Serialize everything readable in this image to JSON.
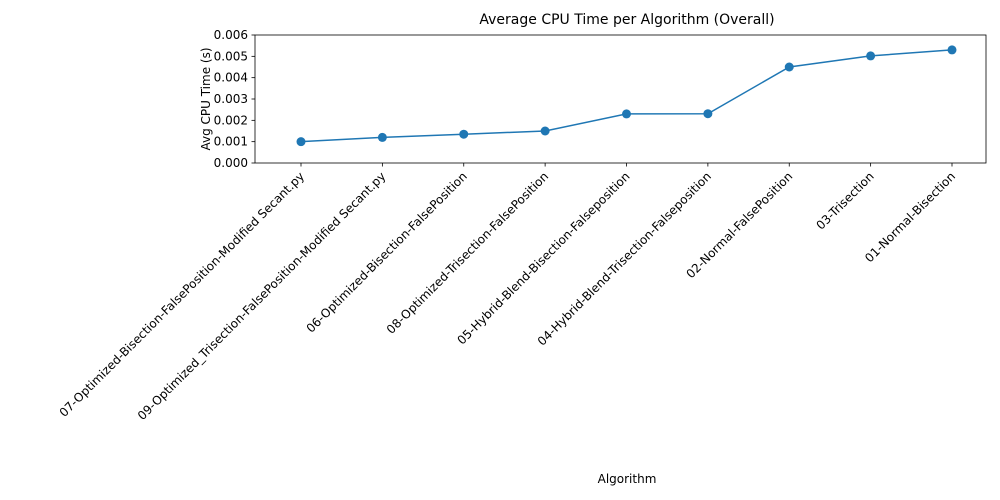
{
  "chart_data": {
    "type": "line",
    "title": "Average CPU Time per Algorithm (Overall)",
    "xlabel": "Algorithm",
    "ylabel": "Avg CPU Time (s)",
    "ylim": [
      0,
      0.006
    ],
    "yticks": [
      "0.000",
      "0.001",
      "0.002",
      "0.003",
      "0.004",
      "0.005",
      "0.006"
    ],
    "grid": false,
    "color": "#1f77b4",
    "categories": [
      "07-Optimized-Bisection-FalsePosition-Modified Secant.py",
      "09-Optimized_Trisection-FalsePosition-Modified Secant.py",
      "06-Optimized-Bisection-FalsePosition",
      "08-Optimized-Trisection-FalsePosition",
      "05-Hybrid-Blend-Bisection-Falseposition",
      "04-Hybrid-Blend-Trisection-Falseposition",
      "02-Normal-FalsePosition",
      "03-Trisection",
      "01-Normal-Bisection"
    ],
    "values": [
      0.001,
      0.0012,
      0.00135,
      0.0015,
      0.0023,
      0.00231,
      0.0045,
      0.00502,
      0.0053
    ]
  }
}
